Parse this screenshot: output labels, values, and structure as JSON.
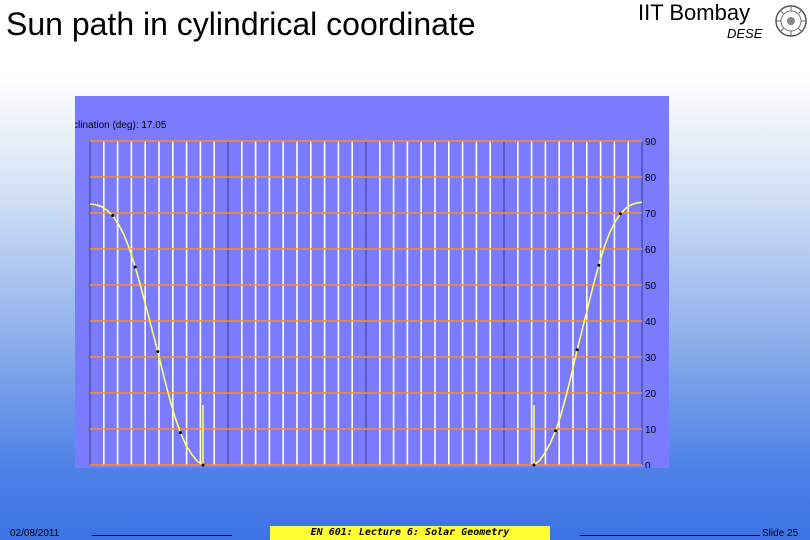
{
  "slide": {
    "title": "Sun path in cylindrical coordinate",
    "institution": "IIT Bombay",
    "department": "DESE",
    "logo_icon": "iit-bombay-seal-icon"
  },
  "footer": {
    "date": "02/08/2011",
    "course": "EN 601: Lecture 6: Solar Geometry",
    "slide_number": "Slide 25"
  },
  "chart_data": {
    "type": "line",
    "title": "clination (deg): 17.05",
    "y_ticks": [
      0,
      10,
      20,
      30,
      40,
      50,
      60,
      70,
      80,
      90
    ],
    "ylim": [
      0,
      90
    ],
    "grid": true,
    "series": [
      {
        "x": [
          0.0,
          0.05,
          0.1,
          0.15,
          0.2,
          0.25,
          0.3,
          0.35,
          0.4,
          0.45,
          0.5,
          0.55,
          0.6,
          0.65,
          0.7,
          0.75,
          0.8,
          0.85,
          0.9,
          0.95,
          1.0
        ],
        "y": [
          72.5,
          72.3,
          71.8,
          70.8,
          69.3,
          67.0,
          64.0,
          60.0,
          55.0,
          49.5,
          43.5,
          37.5,
          31.5,
          25.0,
          19.0,
          13.5,
          9.0,
          5.5,
          3.0,
          1.0,
          0
        ]
      },
      {
        "x": [
          0.0,
          0.05,
          0.1,
          0.15,
          0.2,
          0.25,
          0.3,
          0.35,
          0.4,
          0.45,
          0.5,
          0.55,
          0.6,
          0.65,
          0.7,
          0.75,
          0.8,
          0.85,
          0.9,
          0.95,
          1.0
        ],
        "y": [
          73.0,
          72.8,
          72.3,
          71.3,
          69.8,
          67.5,
          64.5,
          60.5,
          55.5,
          50.0,
          44.0,
          38.0,
          32.0,
          25.5,
          19.5,
          14.0,
          9.5,
          6.0,
          3.3,
          1.2,
          0
        ]
      }
    ],
    "colors": {
      "plot_background": "#7b7bff",
      "vertical_grid": "#ffffff",
      "horizontal_grid": "#ff8c19",
      "curve": "#ffff66",
      "marker": "#000000"
    }
  }
}
